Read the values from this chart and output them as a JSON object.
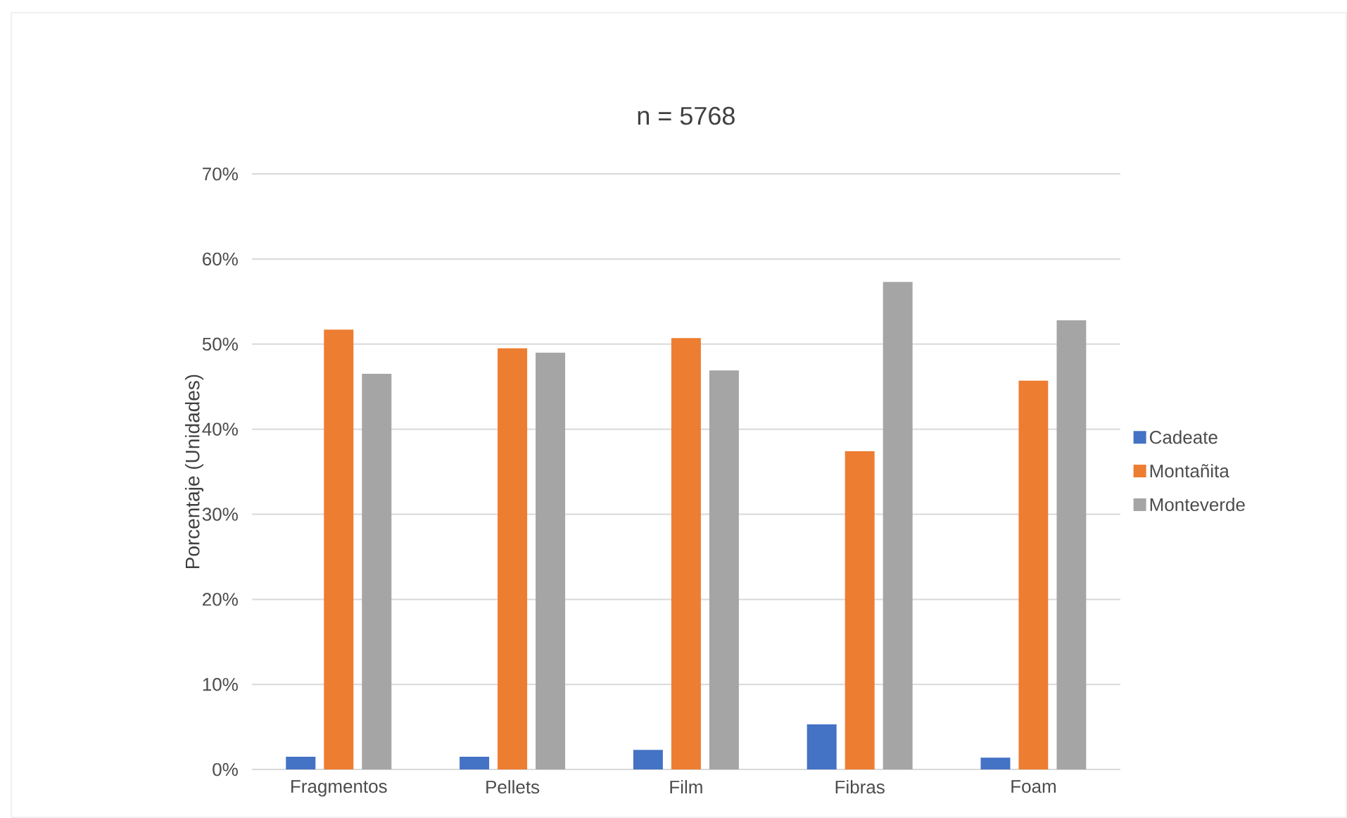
{
  "chart_data": {
    "type": "bar",
    "title": "n = 5768",
    "ylabel": "Porcentaje (Unidades)",
    "categories": [
      "Fragmentos",
      "Pellets",
      "Film",
      "Fibras",
      "Foam"
    ],
    "series": [
      {
        "name": "Cadeate",
        "color": "#4472c4",
        "values": [
          1.5,
          1.5,
          2.3,
          5.3,
          1.4
        ]
      },
      {
        "name": "Montañita",
        "color": "#ed7d31",
        "values": [
          51.7,
          49.5,
          50.7,
          37.4,
          45.7
        ]
      },
      {
        "name": "Monteverde",
        "color": "#a5a5a5",
        "values": [
          46.5,
          49.0,
          46.9,
          57.3,
          52.8
        ]
      }
    ],
    "ylim": [
      0,
      70
    ],
    "yticks": [
      {
        "value": 0,
        "label": "0%"
      },
      {
        "value": 10,
        "label": "10%"
      },
      {
        "value": 20,
        "label": "20%"
      },
      {
        "value": 30,
        "label": "30%"
      },
      {
        "value": 40,
        "label": "40%"
      },
      {
        "value": 50,
        "label": "50%"
      },
      {
        "value": 60,
        "label": "60%"
      },
      {
        "value": 70,
        "label": "70%"
      }
    ],
    "grid": "y",
    "legend": "right"
  }
}
